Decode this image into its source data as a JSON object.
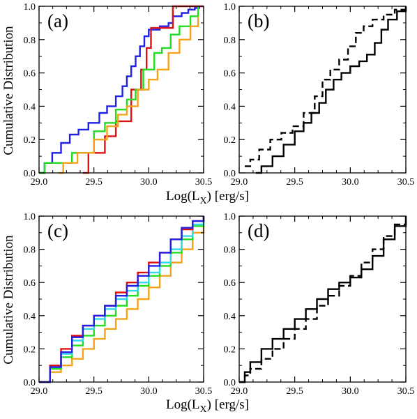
{
  "figure": {
    "xlabel_main": "Log(L",
    "xlabel_sub": "X",
    "xlabel_unit": ") [erg/s]",
    "ylabel": "Cumulative Distribution"
  },
  "colors": {
    "blue": "#1f1fe6",
    "red": "#e01010",
    "green": "#22dd22",
    "orange": "#f4a21c",
    "cyan": "#30d8e8",
    "black": "#000000"
  },
  "chart_data": [
    {
      "type": "line",
      "panel": "(a)",
      "xlim": [
        29.0,
        30.5
      ],
      "ylim": [
        0.0,
        1.0
      ],
      "xticks": [
        "29.0",
        "29.5",
        "30.0",
        "30.5"
      ],
      "yticks": [
        "0.0",
        "0.2",
        "0.4",
        "0.6",
        "0.8",
        "1.0"
      ],
      "series": [
        {
          "color": "blue",
          "dash": false,
          "x": [
            29.0,
            29.05,
            29.12,
            29.2,
            29.28,
            29.36,
            29.45,
            29.55,
            29.62,
            29.7,
            29.76,
            29.8,
            29.84,
            29.88,
            29.92,
            29.96,
            30.0,
            30.1,
            30.18,
            30.22,
            30.3,
            30.36,
            30.42,
            30.46
          ],
          "y": [
            0.0,
            0.06,
            0.12,
            0.18,
            0.23,
            0.26,
            0.3,
            0.36,
            0.4,
            0.46,
            0.52,
            0.58,
            0.64,
            0.7,
            0.76,
            0.82,
            0.86,
            0.88,
            0.9,
            0.94,
            0.96,
            0.98,
            0.99,
            1.0
          ]
        },
        {
          "color": "red",
          "dash": false,
          "x": [
            29.4,
            29.45,
            29.6,
            29.7,
            29.84,
            29.93,
            29.98,
            30.02,
            30.22,
            30.5
          ],
          "y": [
            0.0,
            0.12,
            0.22,
            0.31,
            0.5,
            0.62,
            0.75,
            0.87,
            1.0,
            1.0
          ]
        },
        {
          "color": "green",
          "dash": false,
          "x": [
            29.0,
            29.05,
            29.3,
            29.5,
            29.6,
            29.7,
            29.8,
            29.88,
            29.95,
            30.05,
            30.12,
            30.2,
            30.28,
            30.38,
            30.45
          ],
          "y": [
            0.0,
            0.06,
            0.12,
            0.25,
            0.3,
            0.38,
            0.44,
            0.5,
            0.62,
            0.72,
            0.75,
            0.83,
            0.88,
            0.94,
            1.0
          ]
        },
        {
          "color": "orange",
          "dash": false,
          "x": [
            29.18,
            29.22,
            29.35,
            29.5,
            29.62,
            29.72,
            29.8,
            29.9,
            30.0,
            30.08,
            30.18,
            30.28,
            30.38,
            30.45
          ],
          "y": [
            0.0,
            0.06,
            0.12,
            0.2,
            0.28,
            0.35,
            0.4,
            0.5,
            0.56,
            0.62,
            0.72,
            0.8,
            0.88,
            0.94
          ]
        }
      ]
    },
    {
      "type": "line",
      "panel": "(b)",
      "xlim": [
        29.0,
        30.5
      ],
      "ylim": [
        0.0,
        1.0
      ],
      "xticks": [
        "29.0",
        "29.5",
        "30.0",
        "30.5"
      ],
      "yticks": [
        "0.0",
        "0.2",
        "0.4",
        "0.6",
        "0.8",
        "1.0"
      ],
      "series": [
        {
          "color": "black",
          "dash": false,
          "x": [
            29.15,
            29.2,
            29.3,
            29.4,
            29.5,
            29.58,
            29.65,
            29.72,
            29.78,
            29.85,
            29.92,
            30.0,
            30.08,
            30.15,
            30.22,
            30.28,
            30.34,
            30.42,
            30.5
          ],
          "y": [
            0.0,
            0.04,
            0.1,
            0.17,
            0.25,
            0.3,
            0.36,
            0.42,
            0.5,
            0.56,
            0.6,
            0.64,
            0.67,
            0.71,
            0.78,
            0.86,
            0.92,
            0.97,
            1.0
          ]
        },
        {
          "color": "black",
          "dash": true,
          "x": [
            29.05,
            29.1,
            29.18,
            29.28,
            29.38,
            29.48,
            29.58,
            29.68,
            29.75,
            29.82,
            29.9,
            29.98,
            30.05,
            30.12,
            30.2,
            30.3,
            30.4,
            30.5
          ],
          "y": [
            0.04,
            0.08,
            0.14,
            0.2,
            0.24,
            0.28,
            0.36,
            0.46,
            0.56,
            0.62,
            0.68,
            0.76,
            0.84,
            0.88,
            0.92,
            0.95,
            0.98,
            1.0
          ]
        }
      ]
    },
    {
      "type": "line",
      "panel": "(c)",
      "xlim": [
        29.0,
        30.5
      ],
      "ylim": [
        0.0,
        1.0
      ],
      "xticks": [
        "29.0",
        "29.5",
        "30.0",
        "30.5"
      ],
      "yticks": [
        "0.0",
        "0.2",
        "0.4",
        "0.6",
        "0.8",
        "1.0"
      ],
      "series": [
        {
          "color": "orange",
          "dash": false,
          "x": [
            29.0,
            29.1,
            29.2,
            29.3,
            29.4,
            29.5,
            29.6,
            29.7,
            29.8,
            29.9,
            30.0,
            30.1,
            30.2,
            30.3,
            30.4,
            30.5
          ],
          "y": [
            0.0,
            0.06,
            0.1,
            0.14,
            0.2,
            0.26,
            0.32,
            0.38,
            0.44,
            0.5,
            0.57,
            0.64,
            0.72,
            0.8,
            0.9,
            1.0
          ]
        },
        {
          "color": "green",
          "dash": false,
          "x": [
            29.0,
            29.1,
            29.2,
            29.3,
            29.4,
            29.5,
            29.6,
            29.7,
            29.8,
            29.9,
            30.0,
            30.1,
            30.2,
            30.3,
            30.4,
            30.5
          ],
          "y": [
            0.0,
            0.08,
            0.15,
            0.22,
            0.28,
            0.34,
            0.4,
            0.46,
            0.52,
            0.58,
            0.64,
            0.7,
            0.78,
            0.86,
            0.94,
            1.0
          ]
        },
        {
          "color": "cyan",
          "dash": false,
          "x": [
            29.0,
            29.1,
            29.2,
            29.3,
            29.4,
            29.5,
            29.6,
            29.7,
            29.8,
            29.9,
            30.0,
            30.1,
            30.2,
            30.3,
            30.4,
            30.5
          ],
          "y": [
            0.0,
            0.09,
            0.17,
            0.25,
            0.32,
            0.38,
            0.44,
            0.5,
            0.55,
            0.6,
            0.66,
            0.72,
            0.8,
            0.88,
            0.95,
            1.0
          ]
        },
        {
          "color": "red",
          "dash": false,
          "x": [
            29.0,
            29.1,
            29.2,
            29.3,
            29.4,
            29.5,
            29.6,
            29.7,
            29.8,
            29.9,
            30.0,
            30.1,
            30.2,
            30.3,
            30.4,
            30.5
          ],
          "y": [
            0.0,
            0.1,
            0.2,
            0.28,
            0.34,
            0.4,
            0.46,
            0.54,
            0.6,
            0.66,
            0.72,
            0.78,
            0.86,
            0.92,
            0.97,
            1.0
          ]
        },
        {
          "color": "blue",
          "dash": false,
          "x": [
            29.0,
            29.1,
            29.2,
            29.3,
            29.4,
            29.5,
            29.6,
            29.7,
            29.8,
            29.9,
            30.0,
            30.1,
            30.2,
            30.3,
            30.4,
            30.5
          ],
          "y": [
            0.0,
            0.09,
            0.18,
            0.27,
            0.34,
            0.4,
            0.46,
            0.52,
            0.58,
            0.64,
            0.7,
            0.78,
            0.86,
            0.93,
            0.97,
            1.0
          ]
        }
      ]
    },
    {
      "type": "line",
      "panel": "(d)",
      "xlim": [
        29.0,
        30.5
      ],
      "ylim": [
        0.0,
        1.0
      ],
      "xticks": [
        "29.0",
        "29.5",
        "30.0",
        "30.5"
      ],
      "yticks": [
        "0.0",
        "0.2",
        "0.4",
        "0.6",
        "0.8",
        "1.0"
      ],
      "series": [
        {
          "color": "black",
          "dash": false,
          "x": [
            29.0,
            29.05,
            29.1,
            29.2,
            29.3,
            29.4,
            29.5,
            29.6,
            29.7,
            29.8,
            29.9,
            30.0,
            30.1,
            30.2,
            30.3,
            30.4,
            30.5
          ],
          "y": [
            0.0,
            0.06,
            0.12,
            0.2,
            0.26,
            0.32,
            0.38,
            0.44,
            0.5,
            0.56,
            0.6,
            0.63,
            0.68,
            0.76,
            0.86,
            0.94,
            1.0
          ]
        },
        {
          "color": "black",
          "dash": true,
          "x": [
            29.0,
            29.05,
            29.1,
            29.2,
            29.3,
            29.4,
            29.5,
            29.6,
            29.7,
            29.8,
            29.9,
            30.0,
            30.1,
            30.2,
            30.3,
            30.4,
            30.5
          ],
          "y": [
            0.0,
            0.04,
            0.08,
            0.14,
            0.2,
            0.26,
            0.32,
            0.38,
            0.46,
            0.52,
            0.58,
            0.64,
            0.72,
            0.8,
            0.88,
            0.95,
            1.0
          ]
        }
      ]
    }
  ]
}
